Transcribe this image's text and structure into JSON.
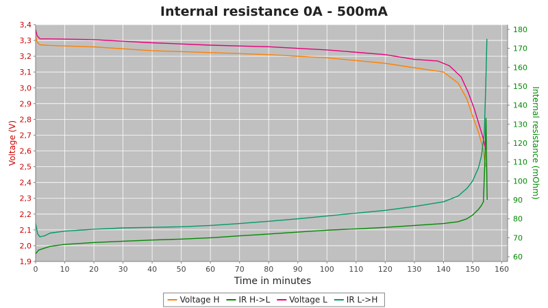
{
  "chart_data": {
    "type": "line",
    "title": "Internal resistance  0A - 500mA",
    "xlabel": "Time in minutes",
    "ylabel_left": "Voltage (V)",
    "ylabel_right": "Internal resistance (mOhm)",
    "xlim": [
      0,
      162
    ],
    "ylim_left": [
      1.9,
      3.4
    ],
    "ylim_right": [
      57.5,
      182.5
    ],
    "x_ticks": [
      0,
      10,
      20,
      30,
      40,
      50,
      60,
      70,
      80,
      90,
      100,
      110,
      120,
      130,
      140,
      150,
      160
    ],
    "y_ticks_left": [
      "1,9",
      "2,0",
      "2,1",
      "2,2",
      "2,3",
      "2,4",
      "2,5",
      "2,6",
      "2,7",
      "2,8",
      "2,9",
      "3,0",
      "3,1",
      "3,2",
      "3,3",
      "3,4"
    ],
    "y_ticks_right": [
      60,
      70,
      80,
      90,
      100,
      110,
      120,
      130,
      140,
      150,
      160,
      170,
      180
    ],
    "grid": true,
    "legend_position": "bottom",
    "series": [
      {
        "name": "Voltage H",
        "axis": "left",
        "color": "#ff8000",
        "points": [
          [
            0,
            3.33
          ],
          [
            0.5,
            3.29
          ],
          [
            1.5,
            3.272
          ],
          [
            5,
            3.268
          ],
          [
            20,
            3.259
          ],
          [
            40,
            3.235
          ],
          [
            60,
            3.223
          ],
          [
            80,
            3.21
          ],
          [
            100,
            3.19
          ],
          [
            120,
            3.155
          ],
          [
            130,
            3.127
          ],
          [
            140,
            3.1
          ],
          [
            145,
            3.03
          ],
          [
            148,
            2.93
          ],
          [
            150,
            2.82
          ],
          [
            152,
            2.72
          ],
          [
            153.5,
            2.62
          ],
          [
            154.5,
            2.5
          ]
        ]
      },
      {
        "name": "IR H->L",
        "axis": "right",
        "color": "#008800",
        "points": [
          [
            0,
            61.5
          ],
          [
            1,
            63.5
          ],
          [
            3,
            64.5
          ],
          [
            5,
            65.5
          ],
          [
            10,
            66.5
          ],
          [
            20,
            67.5
          ],
          [
            30,
            68.2
          ],
          [
            40,
            68.8
          ],
          [
            50,
            69.3
          ],
          [
            60,
            70
          ],
          [
            70,
            71
          ],
          [
            80,
            72
          ],
          [
            90,
            73
          ],
          [
            100,
            74
          ],
          [
            110,
            74.7
          ],
          [
            120,
            75.5
          ],
          [
            130,
            76.5
          ],
          [
            140,
            77.5
          ],
          [
            145,
            78.5
          ],
          [
            148,
            80
          ],
          [
            150,
            82
          ],
          [
            152,
            85
          ],
          [
            153,
            87
          ],
          [
            153.7,
            89
          ],
          [
            154.2,
            110
          ],
          [
            154.6,
            133
          ],
          [
            155,
            90
          ]
        ]
      },
      {
        "name": "Voltage L",
        "axis": "left",
        "color": "#e6007a",
        "points": [
          [
            0,
            3.37
          ],
          [
            0.5,
            3.33
          ],
          [
            1.5,
            3.31
          ],
          [
            5,
            3.31
          ],
          [
            20,
            3.305
          ],
          [
            40,
            3.285
          ],
          [
            60,
            3.27
          ],
          [
            80,
            3.26
          ],
          [
            100,
            3.24
          ],
          [
            120,
            3.21
          ],
          [
            130,
            3.18
          ],
          [
            138,
            3.17
          ],
          [
            142,
            3.14
          ],
          [
            146,
            3.07
          ],
          [
            148.5,
            2.97
          ],
          [
            150.5,
            2.87
          ],
          [
            152,
            2.78
          ],
          [
            153.5,
            2.69
          ],
          [
            154.5,
            2.61
          ]
        ]
      },
      {
        "name": "IR L->H",
        "axis": "right",
        "color": "#009966",
        "points": [
          [
            0,
            77.5
          ],
          [
            0.7,
            72
          ],
          [
            1.5,
            70.5
          ],
          [
            3,
            71
          ],
          [
            5,
            72.5
          ],
          [
            10,
            73.5
          ],
          [
            20,
            74.5
          ],
          [
            30,
            75.2
          ],
          [
            40,
            75.5
          ],
          [
            50,
            75.8
          ],
          [
            60,
            76.5
          ],
          [
            70,
            77.5
          ],
          [
            80,
            78.7
          ],
          [
            90,
            80
          ],
          [
            100,
            81.5
          ],
          [
            110,
            83
          ],
          [
            120,
            84.5
          ],
          [
            130,
            86.5
          ],
          [
            140,
            89
          ],
          [
            145,
            92
          ],
          [
            148,
            96
          ],
          [
            150,
            100
          ],
          [
            152,
            107
          ],
          [
            153,
            113
          ],
          [
            154,
            125
          ],
          [
            154.5,
            150
          ],
          [
            154.9,
            175
          ]
        ]
      }
    ]
  }
}
